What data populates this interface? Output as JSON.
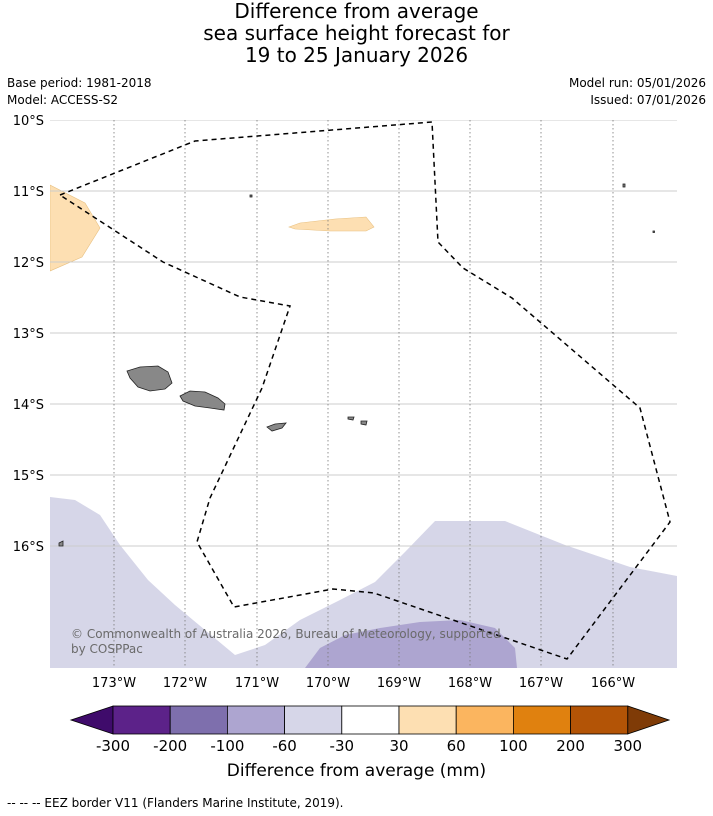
{
  "title": {
    "line1": "Difference from average",
    "line2": "sea surface height forecast for",
    "line3": "19 to 25 January 2026"
  },
  "meta": {
    "base_period": "Base period: 1981-2018",
    "model": "Model: ACCESS-S2",
    "model_run": "Model run: 05/01/2026",
    "issued": "Issued: 07/01/2026"
  },
  "map": {
    "lat_labels": [
      "10°S",
      "11°S",
      "12°S",
      "13°S",
      "14°S",
      "15°S",
      "16°S"
    ],
    "lon_labels": [
      "173°W",
      "172°W",
      "171°W",
      "170°W",
      "169°W",
      "168°W",
      "167°W",
      "166°W"
    ],
    "copyright": "© Commonwealth of Australia 2026, Bureau of Meteorology, supported by COSPPac",
    "copyright_line1": "© Commonwealth of Australia 2026, Bureau of Meteorology, supported",
    "copyright_line2": "by COSPPac"
  },
  "colorbar": {
    "title": "Difference from average (mm)",
    "tick_labels": [
      "-300",
      "-200",
      "-100",
      "-60",
      "-30",
      "30",
      "60",
      "100",
      "200",
      "300"
    ],
    "colors": [
      "#3f0b6b",
      "#5c2289",
      "#7e6fad",
      "#ada5d0",
      "#d6d6e8",
      "#ffffff",
      "#fddfb2",
      "#fbb55f",
      "#e0810f",
      "#b35406",
      "#7f3b07"
    ]
  },
  "footnote": "-- -- -- EEZ border V11 (Flanders Marine Institute, 2019)."
}
